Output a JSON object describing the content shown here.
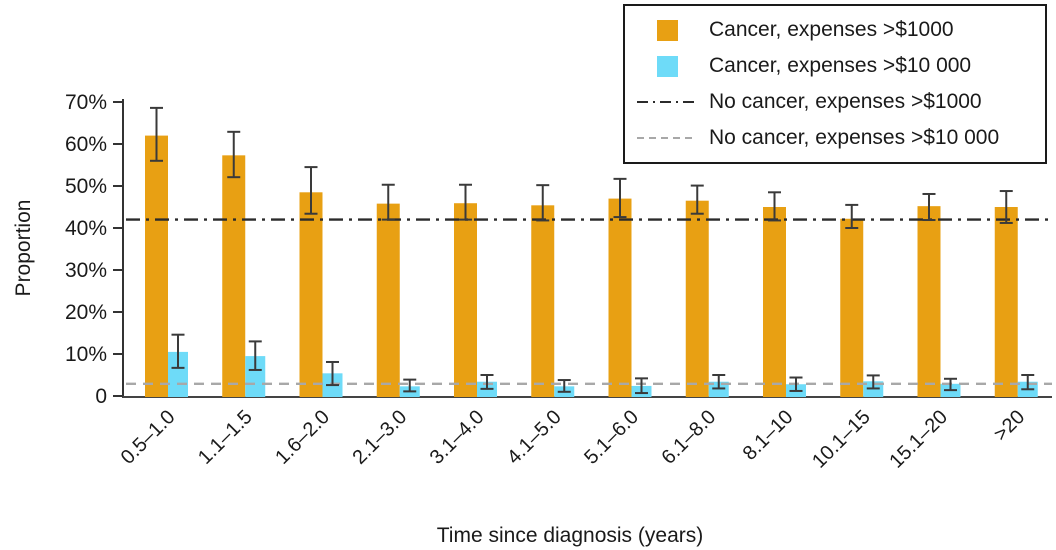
{
  "chart_data": {
    "type": "bar",
    "title": "",
    "xlabel": "Time since diagnosis (years)",
    "ylabel": "Proportion",
    "ylim": [
      0,
      70
    ],
    "grid": false,
    "legend_position": "top-right",
    "yticks": [
      0,
      10,
      20,
      30,
      40,
      50,
      60,
      70
    ],
    "ytick_labels": [
      "0",
      "10%",
      "20%",
      "30%",
      "40%",
      "50%",
      "60%",
      "70%"
    ],
    "categories": [
      "0.5–1.0",
      "1.1–1.5",
      "1.6–2.0",
      "2.1–3.0",
      "3.1–4.0",
      "4.1–5.0",
      "5.1–6.0",
      "6.1–8.0",
      "8.1–10",
      "10.1–15",
      "15.1–20",
      ">20"
    ],
    "series": [
      {
        "name": "Cancer, expenses >$1000",
        "color": "#E8A013",
        "values": [
          62.0,
          57.3,
          48.5,
          45.8,
          45.9,
          45.4,
          47.0,
          46.5,
          45.0,
          42.2,
          45.2,
          45.0
        ],
        "err_low": [
          56.0,
          52.1,
          43.4,
          42.0,
          42.0,
          41.8,
          42.6,
          43.4,
          41.8,
          40.0,
          41.9,
          41.2
        ],
        "err_high": [
          68.6,
          62.9,
          54.5,
          50.3,
          50.3,
          50.2,
          51.7,
          50.1,
          48.5,
          45.5,
          48.1,
          48.8
        ]
      },
      {
        "name": "Cancer, expenses >$10 000",
        "color": "#6EDBF8",
        "values": [
          10.5,
          9.5,
          5.4,
          2.3,
          3.4,
          2.3,
          2.4,
          3.4,
          2.8,
          3.5,
          2.9,
          3.4
        ],
        "err_low": [
          6.7,
          6.2,
          2.6,
          1.1,
          1.7,
          1.0,
          0.7,
          1.8,
          1.2,
          1.8,
          1.4,
          1.6
        ],
        "err_high": [
          14.6,
          13.0,
          8.1,
          3.9,
          5.0,
          3.8,
          4.2,
          5.0,
          4.4,
          4.9,
          4.1,
          5.0
        ]
      }
    ],
    "reference_lines": [
      {
        "name": "No cancer, expenses >$1000",
        "value": 42.0,
        "style": "dashdot",
        "color": "#2b2b2b"
      },
      {
        "name": "No cancer, expenses >$10 000",
        "value": 2.9,
        "style": "dashed",
        "color": "#a8a8a8"
      }
    ],
    "error_bar_color": "#3a3a3a",
    "axis_color": "#444444"
  }
}
